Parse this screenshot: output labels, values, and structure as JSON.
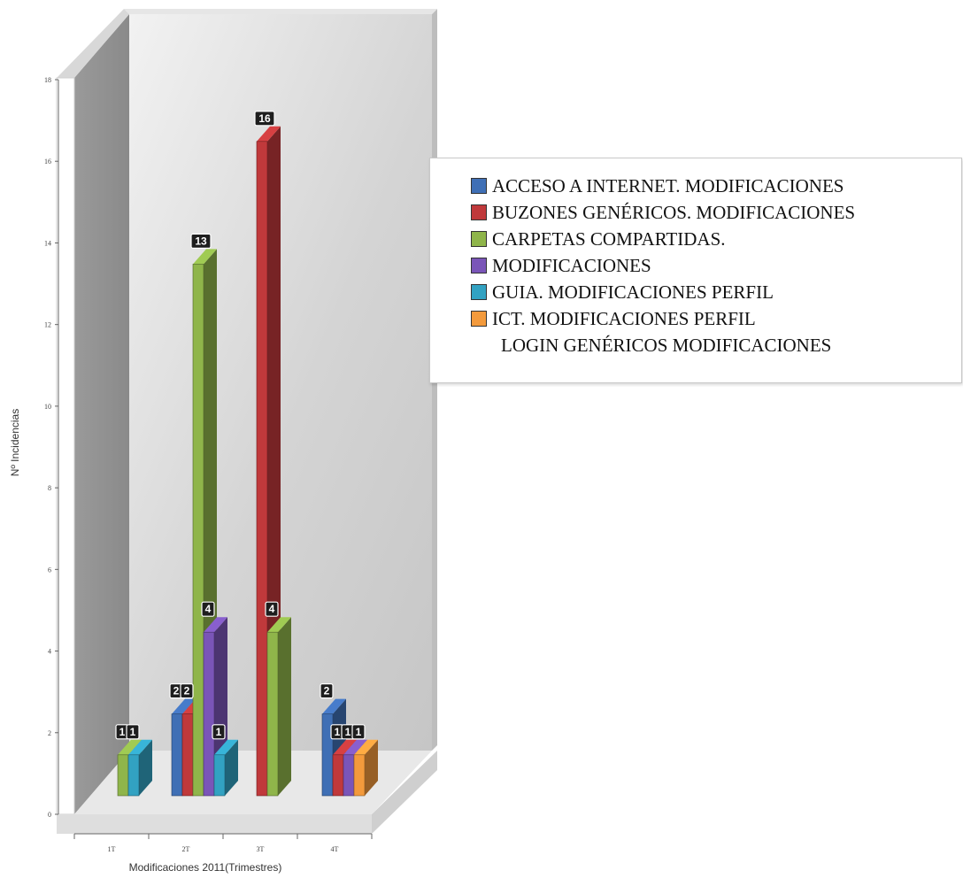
{
  "chart_data": {
    "type": "bar",
    "three_d": true,
    "xlabel": "Modificaciones 2011(Trimestres)",
    "ylabel": "Nº Incidencias",
    "ylim": [
      0,
      18
    ],
    "yticks": [
      "0",
      "2",
      "4",
      "6",
      "8",
      "10",
      "12",
      "14",
      "16",
      "18"
    ],
    "categories": [
      "1T",
      "2T",
      "3T",
      "4T"
    ],
    "legend_position": "right",
    "series": [
      {
        "name": "ACCESO A INTERNET. MODIFICACIONES",
        "color": "#3f6fb5",
        "values": [
          null,
          2,
          null,
          2
        ]
      },
      {
        "name": "BUZONES GENÉRICOS. MODIFICACIONES",
        "color": "#c0393b",
        "values": [
          null,
          2,
          16,
          1
        ]
      },
      {
        "name": "CARPETAS COMPARTIDAS.",
        "color": "#8fb54a",
        "values": [
          1,
          13,
          4,
          null
        ]
      },
      {
        "name": "MODIFICACIONES",
        "color": "#7a55b8",
        "values": [
          null,
          4,
          null,
          1
        ]
      },
      {
        "name": "GUIA. MODIFICACIONES PERFIL",
        "color": "#32a2c2",
        "values": [
          1,
          1,
          null,
          null
        ]
      },
      {
        "name": "ICT. MODIFICACIONES PERFIL",
        "color": "#f39a3c",
        "values": [
          null,
          null,
          null,
          1
        ]
      }
    ],
    "legend_extra_line": "LOGIN GENÉRICOS MODIFICACIONES",
    "data_labels": [
      {
        "category": "1T",
        "series": "CARPETAS COMPARTIDAS.",
        "text": "1"
      },
      {
        "category": "1T",
        "series": "GUIA. MODIFICACIONES PERFIL",
        "text": "1"
      },
      {
        "category": "2T",
        "series": "ACCESO A INTERNET. MODIFICACIONES",
        "text": "2"
      },
      {
        "category": "2T",
        "series": "BUZONES GENÉRICOS. MODIFICACIONES",
        "text": "2"
      },
      {
        "category": "2T",
        "series": "CARPETAS COMPARTIDAS.",
        "text": "13"
      },
      {
        "category": "2T",
        "series": "MODIFICACIONES",
        "text": "4"
      },
      {
        "category": "2T",
        "series": "GUIA. MODIFICACIONES PERFIL",
        "text": "1"
      },
      {
        "category": "3T",
        "series": "BUZONES GENÉRICOS. MODIFICACIONES",
        "text": "16"
      },
      {
        "category": "3T",
        "series": "CARPETAS COMPARTIDAS.",
        "text": "4"
      },
      {
        "category": "4T",
        "series": "ACCESO A INTERNET. MODIFICACIONES",
        "text": "2"
      },
      {
        "category": "4T",
        "series": "BUZONES GENÉRICOS. MODIFICACIONES",
        "text": "1"
      },
      {
        "category": "4T",
        "series": "MODIFICACIONES",
        "text": "1"
      },
      {
        "category": "4T",
        "series": "ICT. MODIFICACIONES PERFIL",
        "text": "1"
      }
    ]
  }
}
